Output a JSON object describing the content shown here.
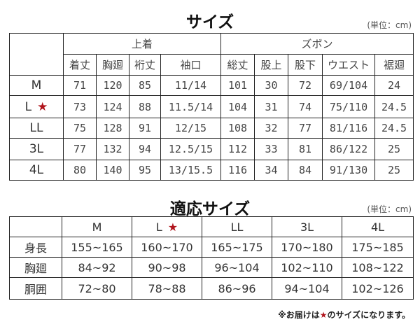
{
  "garment": {
    "title": "サイズ",
    "unit": "(単位：cm)",
    "groups": [
      "上着",
      "ズボン"
    ],
    "columns": [
      "着丈",
      "胸廻",
      "裄丈",
      "袖口",
      "総丈",
      "股上",
      "股下",
      "ウエスト",
      "裾廻"
    ],
    "rows": [
      {
        "size": "M",
        "star": false,
        "values": [
          "71",
          "120",
          "85",
          "11/14",
          "101",
          "30",
          "72",
          "69/104",
          "24"
        ]
      },
      {
        "size": "L",
        "star": true,
        "values": [
          "73",
          "124",
          "88",
          "11.5/14",
          "104",
          "31",
          "74",
          "75/110",
          "24.5"
        ]
      },
      {
        "size": "LL",
        "star": false,
        "values": [
          "75",
          "128",
          "91",
          "12/15",
          "108",
          "32",
          "77",
          "81/116",
          "24.5"
        ]
      },
      {
        "size": "3L",
        "star": false,
        "values": [
          "77",
          "132",
          "94",
          "12.5/15",
          "112",
          "33",
          "81",
          "86/122",
          "25"
        ]
      },
      {
        "size": "4L",
        "star": false,
        "values": [
          "80",
          "140",
          "95",
          "13/15.5",
          "116",
          "34",
          "84",
          "91/130",
          "25"
        ]
      }
    ]
  },
  "fit": {
    "title": "適応サイズ",
    "unit": "(単位：cm)",
    "sizes": [
      {
        "label": "M",
        "star": false
      },
      {
        "label": "L",
        "star": true
      },
      {
        "label": "LL",
        "star": false
      },
      {
        "label": "3L",
        "star": false
      },
      {
        "label": "4L",
        "star": false
      }
    ],
    "rows": [
      {
        "label": "身長",
        "values": [
          "155~165",
          "160~170",
          "165~175",
          "170~180",
          "175~185"
        ]
      },
      {
        "label": "胸廻",
        "values": [
          "84~92",
          "90~98",
          "96~104",
          "102~110",
          "108~122"
        ]
      },
      {
        "label": "胴囲",
        "values": [
          "72~80",
          "78~88",
          "86~96",
          "94~104",
          "102~126"
        ]
      }
    ]
  },
  "note": {
    "before": "※お届けは",
    "star": "★",
    "after": "のサイズになります。"
  },
  "colors": {
    "star": "#b0141c",
    "border": "#222222"
  }
}
